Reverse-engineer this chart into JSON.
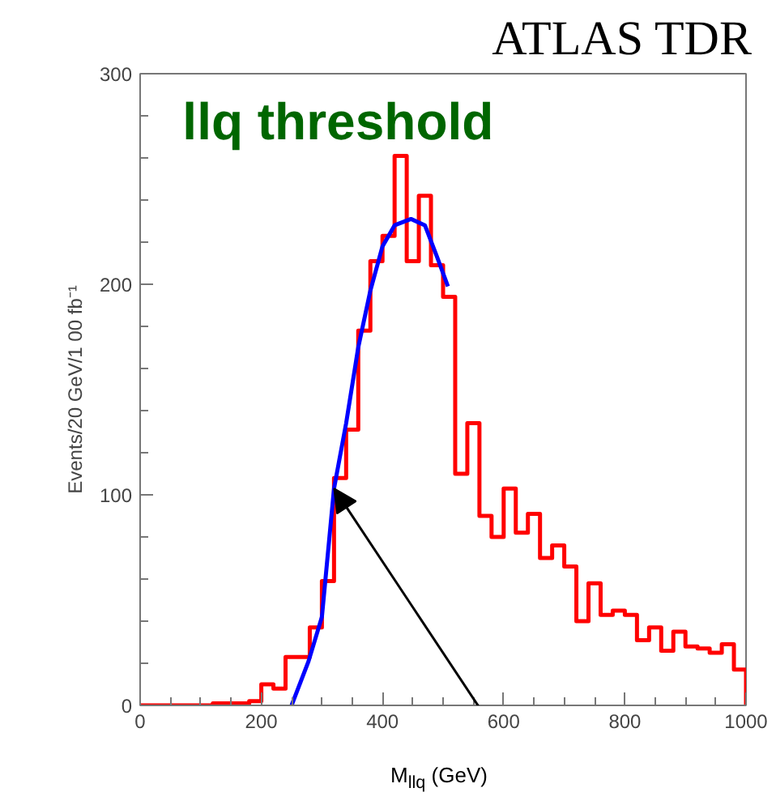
{
  "chart_data": {
    "type": "histogram",
    "title": "llq threshold",
    "xlabel": "M$_{llq}$ (GeV)",
    "ylabel": "Events/20 GeV/1 00 fb⁻¹",
    "annotations": [
      "ATLAS TDR"
    ],
    "bins": [
      0,
      20,
      40,
      60,
      80,
      100,
      120,
      140,
      160,
      180,
      200,
      220,
      240,
      260,
      280,
      300,
      320,
      340,
      360,
      380,
      400,
      420,
      440,
      460,
      480,
      500,
      520,
      540,
      560,
      580,
      600,
      620,
      640,
      660,
      680,
      700,
      720,
      740,
      760,
      780,
      800,
      820,
      840,
      860,
      880,
      900,
      920,
      940,
      960,
      980,
      1000
    ],
    "series": [
      {
        "type": "histogram",
        "color": "#ff0000",
        "values": [
          0,
          0,
          0,
          0,
          0,
          0,
          1,
          1,
          1,
          2,
          10,
          8,
          23,
          23,
          37,
          59,
          108,
          131,
          178,
          211,
          223,
          261,
          211,
          242,
          209,
          194,
          110,
          134,
          90,
          80,
          103,
          82,
          91,
          70,
          76,
          66,
          40,
          58,
          43,
          45,
          43,
          31,
          37,
          26,
          35,
          28,
          27,
          25,
          29,
          17
        ]
      },
      {
        "type": "line",
        "color": "#0000ff",
        "x": [
          250,
          278,
          300,
          320,
          340,
          360,
          380,
          400,
          420,
          447,
          470,
          490,
          508
        ],
        "values": [
          0,
          21,
          42,
          103,
          134,
          170,
          197,
          218,
          228,
          231,
          228,
          213,
          199
        ]
      }
    ],
    "xlim": [
      0,
      1000
    ],
    "ylim": [
      0,
      300
    ],
    "xticks": [
      0,
      200,
      400,
      600,
      800,
      1000
    ],
    "yticks": [
      0,
      100,
      200,
      300
    ],
    "grid": false,
    "legend": false
  }
}
